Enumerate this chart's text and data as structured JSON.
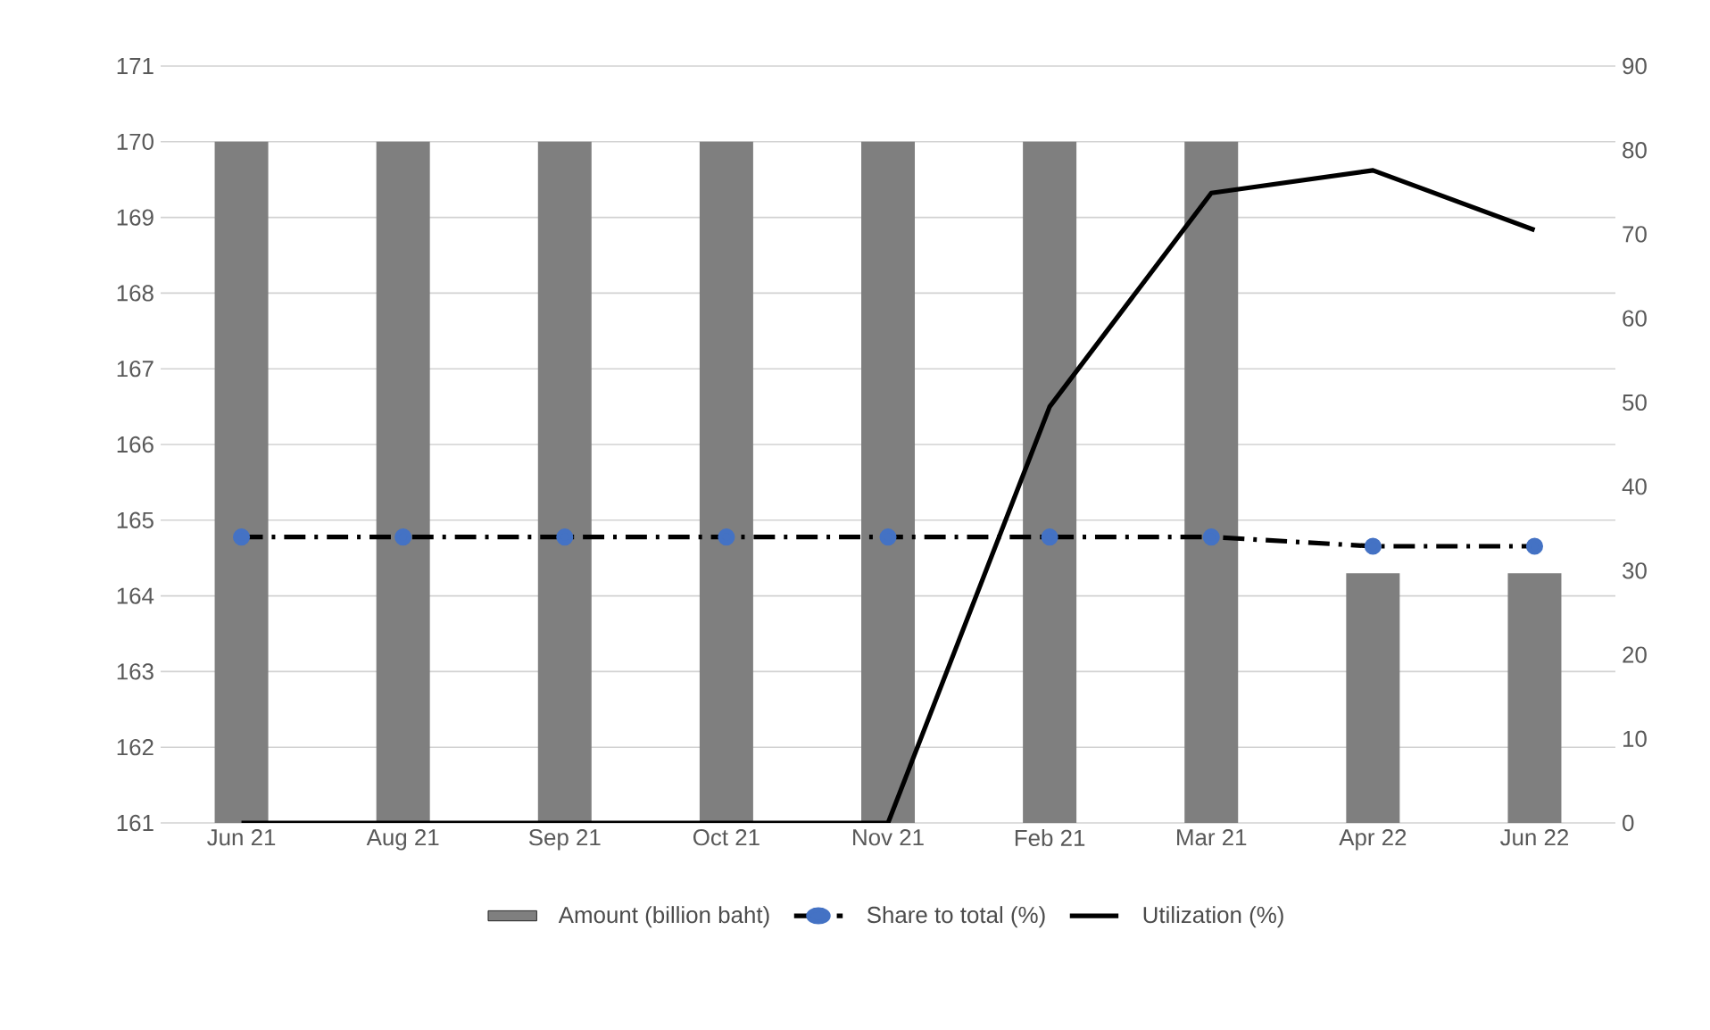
{
  "chart_data": {
    "type": "bar",
    "categories": [
      "Jun 21",
      "Aug 21",
      "Sep 21",
      "Oct 21",
      "Nov 21",
      "Feb 21",
      "Mar 21",
      "Apr 22",
      "Jun 22"
    ],
    "series": [
      {
        "name": "Amount (billion baht)",
        "color": "#7f7f7f",
        "values": [
          170,
          170,
          170,
          170,
          170,
          170,
          170,
          164.3,
          164.3
        ]
      },
      {
        "name": "Share to total (%)",
        "type": "line",
        "axis": "y2",
        "color": "#4472c4",
        "marker": "circle",
        "line_style": "dashed",
        "values": [
          34,
          34,
          34,
          34,
          34,
          34,
          34,
          32.9,
          32.9
        ]
      },
      {
        "name": "Utilization (%)",
        "type": "line",
        "axis": "y2",
        "color": "#000000",
        "marker": "none",
        "line_style": "solid",
        "values": [
          0,
          0,
          0,
          0,
          0,
          49.5,
          74.9,
          77.6,
          70.5
        ]
      }
    ],
    "ylim": [
      161,
      171
    ],
    "yticks": [
      161,
      162,
      163,
      164,
      165,
      166,
      167,
      168,
      169,
      170,
      171
    ],
    "y2lim": [
      0,
      90
    ],
    "y2ticks": [
      0,
      10,
      20,
      30,
      40,
      50,
      60,
      70,
      80,
      90
    ],
    "grid": "y",
    "legend": "bottom"
  }
}
